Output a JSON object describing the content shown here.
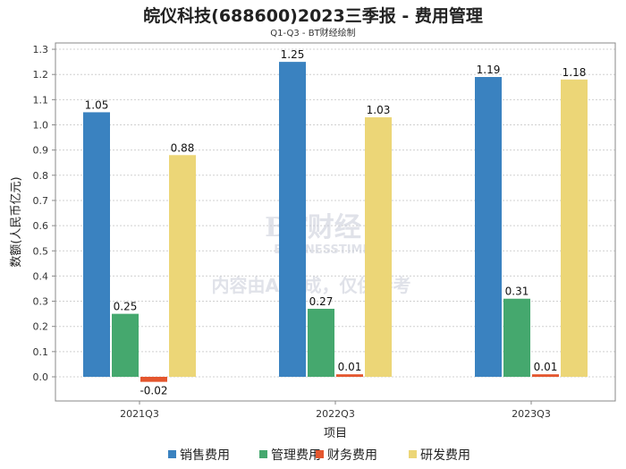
{
  "chart_data": {
    "type": "bar",
    "title": "皖仪科技(688600)2023三季报 - 费用管理",
    "subtitle": "Q1-Q3 - BT财经绘制",
    "xlabel": "项目",
    "ylabel": "数额(人民币亿元)",
    "ylim": [
      -0.1,
      1.32
    ],
    "yticks": [
      0.0,
      0.1,
      0.2,
      0.3,
      0.4,
      0.5,
      0.6,
      0.7,
      0.8,
      0.9,
      1.0,
      1.1,
      1.2,
      1.3
    ],
    "ytick_labels": [
      "0.0",
      "0.1",
      "0.2",
      "0.3",
      "0.4",
      "0.5",
      "0.6",
      "0.7",
      "0.8",
      "0.9",
      "1.0",
      "1.1",
      "1.2",
      "1.3"
    ],
    "grid": true,
    "legend_position": "bottom",
    "categories": [
      "2021Q3",
      "2022Q3",
      "2023Q3"
    ],
    "series": [
      {
        "name": "销售费用",
        "color": "#3a82c0",
        "values": [
          1.05,
          1.25,
          1.19
        ],
        "labels": [
          "1.05",
          "1.25",
          "1.19"
        ]
      },
      {
        "name": "管理费用",
        "color": "#45a86e",
        "values": [
          0.25,
          0.27,
          0.31
        ],
        "labels": [
          "0.25",
          "0.27",
          "0.31"
        ]
      },
      {
        "name": "财务费用",
        "color": "#e4562e",
        "values": [
          -0.02,
          0.01,
          0.01
        ],
        "labels": [
          "-0.02",
          "0.01",
          "0.01"
        ]
      },
      {
        "name": "研发费用",
        "color": "#ecd677",
        "values": [
          0.88,
          1.03,
          1.18
        ],
        "labels": [
          "0.88",
          "1.03",
          "1.18"
        ]
      }
    ]
  },
  "watermark": {
    "brand": "BT财经",
    "brand_en": "BUSINESSTIMES",
    "notice": "内容由AI生成，仅供参考"
  }
}
